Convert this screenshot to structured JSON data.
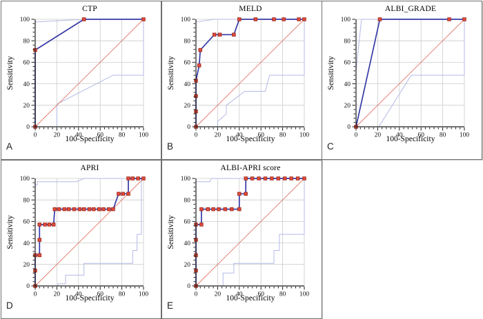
{
  "figure": {
    "background": "#ffffff"
  },
  "axis": {
    "xlabel": "100-Specificity",
    "ylabel": "Sensitivity",
    "ticks": [
      0,
      20,
      40,
      60,
      80,
      100
    ],
    "minor_step": 4,
    "xlim": [
      0,
      100
    ],
    "ylim": [
      0,
      100
    ],
    "grid": true,
    "legend": "none"
  },
  "colors": {
    "roc_line": "#3538a6",
    "marker_fill": "#e44d3c",
    "marker_stroke": "#9e2b20",
    "ci_line": "#b4b9e6",
    "diagonal": "#e1786a",
    "grid": "#cccccc",
    "axis": "#1a1a1a",
    "text": "#111111",
    "panel_border": "#6e6e6e"
  },
  "chart_data": [
    {
      "panel": "A",
      "type": "line",
      "title": "CTP",
      "xlabel": "100-Specificity",
      "ylabel": "Sensitivity",
      "xlim": [
        0,
        100
      ],
      "ylim": [
        0,
        100
      ],
      "roc_points": [
        [
          0,
          0
        ],
        [
          0,
          71.4
        ],
        [
          45,
          100
        ],
        [
          100,
          100
        ]
      ],
      "ci_upper": [
        [
          0,
          0
        ],
        [
          0,
          97.5
        ],
        [
          45,
          100
        ],
        [
          100,
          100
        ]
      ],
      "ci_lower": [
        [
          0,
          0
        ],
        [
          20,
          0
        ],
        [
          20,
          21
        ],
        [
          72,
          48
        ],
        [
          100,
          48
        ],
        [
          100,
          100
        ]
      ],
      "diagonal": [
        [
          0,
          0
        ],
        [
          100,
          100
        ]
      ]
    },
    {
      "panel": "B",
      "type": "line",
      "title": "MELD",
      "xlabel": "100-Specificity",
      "ylabel": "Sensitivity",
      "xlim": [
        0,
        100
      ],
      "ylim": [
        0,
        100
      ],
      "roc_points": [
        [
          0,
          0
        ],
        [
          0,
          14.3
        ],
        [
          0,
          28.6
        ],
        [
          0,
          42.9
        ],
        [
          3,
          57.1
        ],
        [
          4,
          71.4
        ],
        [
          17,
          85.7
        ],
        [
          22,
          85.7
        ],
        [
          35,
          85.7
        ],
        [
          40,
          100
        ],
        [
          55,
          100
        ],
        [
          72,
          100
        ],
        [
          81,
          100
        ],
        [
          95,
          100
        ],
        [
          100,
          100
        ]
      ],
      "ci_upper": [
        [
          0,
          0
        ],
        [
          0,
          97.5
        ],
        [
          17,
          100
        ],
        [
          100,
          100
        ]
      ],
      "ci_lower": [
        [
          0,
          0
        ],
        [
          20,
          0
        ],
        [
          20,
          5
        ],
        [
          28,
          12
        ],
        [
          28,
          20
        ],
        [
          45,
          33
        ],
        [
          64,
          33
        ],
        [
          68,
          48
        ],
        [
          100,
          48
        ],
        [
          100,
          100
        ]
      ],
      "diagonal": [
        [
          0,
          0
        ],
        [
          100,
          100
        ]
      ]
    },
    {
      "panel": "C",
      "type": "line",
      "title": "ALBI_GRADE",
      "xlabel": "100-Specificity",
      "ylabel": "Sensitivity",
      "xlim": [
        0,
        100
      ],
      "ylim": [
        0,
        100
      ],
      "roc_points": [
        [
          0,
          0
        ],
        [
          22,
          100
        ],
        [
          86,
          100
        ],
        [
          100,
          100
        ]
      ],
      "ci_upper": [
        [
          0,
          0
        ],
        [
          0,
          52
        ],
        [
          5,
          100
        ],
        [
          100,
          100
        ]
      ],
      "ci_lower": [
        [
          0,
          0
        ],
        [
          21,
          0
        ],
        [
          51,
          48
        ],
        [
          100,
          48
        ],
        [
          100,
          100
        ]
      ],
      "diagonal": [
        [
          0,
          0
        ],
        [
          100,
          100
        ]
      ]
    },
    {
      "panel": "D",
      "type": "line",
      "title": "APRI",
      "xlabel": "100-Specificity",
      "ylabel": "Sensitivity",
      "xlim": [
        0,
        100
      ],
      "ylim": [
        0,
        100
      ],
      "roc_points": [
        [
          0,
          0
        ],
        [
          0,
          14.3
        ],
        [
          0,
          28.6
        ],
        [
          4,
          28.6
        ],
        [
          4,
          42.9
        ],
        [
          4,
          57.1
        ],
        [
          9,
          57.1
        ],
        [
          13,
          57.1
        ],
        [
          17,
          57.1
        ],
        [
          18,
          71.4
        ],
        [
          22,
          71.4
        ],
        [
          27,
          71.4
        ],
        [
          31,
          71.4
        ],
        [
          36,
          71.4
        ],
        [
          41,
          71.4
        ],
        [
          45,
          71.4
        ],
        [
          50,
          71.4
        ],
        [
          54,
          71.4
        ],
        [
          59,
          71.4
        ],
        [
          63,
          71.4
        ],
        [
          68,
          71.4
        ],
        [
          72,
          71.4
        ],
        [
          77,
          85.7
        ],
        [
          81,
          85.7
        ],
        [
          86,
          85.7
        ],
        [
          86,
          100
        ],
        [
          90,
          100
        ],
        [
          95,
          100
        ],
        [
          100,
          100
        ]
      ],
      "ci_upper": [
        [
          0,
          0
        ],
        [
          0,
          94
        ],
        [
          2,
          94
        ],
        [
          2,
          97
        ],
        [
          38,
          97
        ],
        [
          45,
          100
        ],
        [
          100,
          100
        ]
      ],
      "ci_lower": [
        [
          0,
          0
        ],
        [
          21,
          0
        ],
        [
          21,
          2
        ],
        [
          28,
          2
        ],
        [
          28,
          10
        ],
        [
          45,
          10
        ],
        [
          45,
          21
        ],
        [
          90,
          21
        ],
        [
          90,
          33
        ],
        [
          94,
          33
        ],
        [
          94,
          48
        ],
        [
          98,
          48
        ],
        [
          98,
          100
        ],
        [
          100,
          100
        ]
      ],
      "diagonal": [
        [
          0,
          0
        ],
        [
          100,
          100
        ]
      ]
    },
    {
      "panel": "E",
      "type": "line",
      "title": "ALBI-APRI score",
      "xlabel": "100-Specificity",
      "ylabel": "Sensitivity",
      "xlim": [
        0,
        100
      ],
      "ylim": [
        0,
        100
      ],
      "roc_points": [
        [
          0,
          0
        ],
        [
          0,
          14.3
        ],
        [
          0,
          28.6
        ],
        [
          0,
          42.9
        ],
        [
          0,
          57.1
        ],
        [
          5,
          57.1
        ],
        [
          5,
          71.4
        ],
        [
          11,
          71.4
        ],
        [
          16,
          71.4
        ],
        [
          21,
          71.4
        ],
        [
          27,
          71.4
        ],
        [
          33,
          71.4
        ],
        [
          40,
          71.4
        ],
        [
          40,
          85.7
        ],
        [
          46,
          85.7
        ],
        [
          46,
          100
        ],
        [
          52,
          100
        ],
        [
          58,
          100
        ],
        [
          64,
          100
        ],
        [
          70,
          100
        ],
        [
          76,
          100
        ],
        [
          82,
          100
        ],
        [
          88,
          100
        ],
        [
          94,
          100
        ],
        [
          100,
          100
        ]
      ],
      "ci_upper": [
        [
          0,
          0
        ],
        [
          0,
          97
        ],
        [
          13,
          97
        ],
        [
          14,
          100
        ],
        [
          100,
          100
        ]
      ],
      "ci_lower": [
        [
          0,
          0
        ],
        [
          25,
          0
        ],
        [
          25,
          12
        ],
        [
          35,
          12
        ],
        [
          35,
          21
        ],
        [
          72,
          21
        ],
        [
          72,
          33
        ],
        [
          77,
          33
        ],
        [
          77,
          48
        ],
        [
          100,
          48
        ],
        [
          100,
          100
        ]
      ],
      "diagonal": [
        [
          0,
          0
        ],
        [
          100,
          100
        ]
      ]
    }
  ]
}
